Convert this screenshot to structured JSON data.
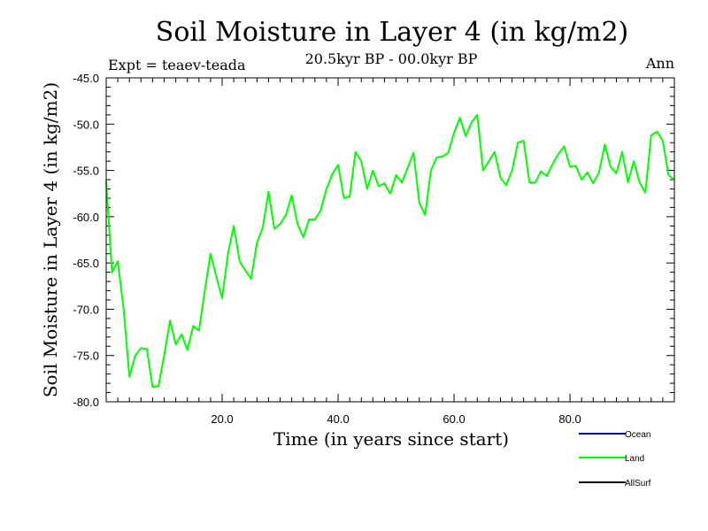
{
  "chart_data": {
    "type": "line",
    "title": "Soil Moisture in Layer 4 (in kg/m2)",
    "subtitle": "20.5kyr BP - 00.0kyr BP",
    "expt_label": "Expt = teaev-teada",
    "season_label": "Ann",
    "xlabel": "Time (in years since start)",
    "ylabel": "Soil Moisture in Layer 4 (in kg/m2)",
    "xlim": [
      0,
      98
    ],
    "ylim": [
      -80,
      -45
    ],
    "x_ticks": [
      20,
      40,
      60,
      80
    ],
    "x_tick_labels": [
      "20.0",
      "40.0",
      "60.0",
      "80.0"
    ],
    "y_ticks": [
      -80,
      -75,
      -70,
      -65,
      -60,
      -55,
      -50,
      -45
    ],
    "y_tick_labels": [
      "-80.0",
      "-75.0",
      "-70.0",
      "-65.0",
      "-60.0",
      "-55.0",
      "-50.0",
      "-45.0"
    ],
    "legend": [
      {
        "name": "Ocean",
        "color": "#0000cc"
      },
      {
        "name": "Land",
        "color": "#00ff00"
      },
      {
        "name": "AllSurf",
        "color": "#000000"
      }
    ],
    "series": [
      {
        "name": "Land",
        "color": "#00ff00",
        "x": [
          0,
          1,
          2,
          3,
          4,
          5,
          6,
          7,
          8,
          9,
          10,
          11,
          12,
          13,
          14,
          15,
          16,
          17,
          18,
          19,
          20,
          21,
          22,
          23,
          24,
          25,
          26,
          27,
          28,
          29,
          30,
          31,
          32,
          33,
          34,
          35,
          36,
          37,
          38,
          39,
          40,
          41,
          42,
          43,
          44,
          45,
          46,
          47,
          48,
          49,
          50,
          51,
          52,
          53,
          54,
          55,
          56,
          57,
          58,
          59,
          60,
          61,
          62,
          63,
          64,
          65,
          66,
          67,
          68,
          69,
          70,
          71,
          72,
          73,
          74,
          75,
          76,
          77,
          78,
          79,
          80,
          81,
          82,
          83,
          84,
          85,
          86,
          87,
          88,
          89,
          90,
          91,
          92,
          93,
          94,
          95,
          96,
          97,
          98
        ],
        "values": [
          -56.2,
          -66.0,
          -64.8,
          -70.0,
          -77.3,
          -75.0,
          -74.2,
          -74.3,
          -78.4,
          -78.3,
          -75.0,
          -71.2,
          -73.8,
          -72.7,
          -74.4,
          -71.8,
          -72.3,
          -68.0,
          -64.0,
          -66.5,
          -68.8,
          -64.0,
          -61.0,
          -64.8,
          -65.8,
          -66.7,
          -62.8,
          -61.2,
          -57.3,
          -61.3,
          -60.8,
          -59.8,
          -57.7,
          -60.8,
          -62.2,
          -60.3,
          -60.3,
          -59.3,
          -57.0,
          -55.4,
          -54.4,
          -58.0,
          -57.8,
          -53.0,
          -54.0,
          -57.0,
          -55.0,
          -56.7,
          -56.4,
          -57.5,
          -55.5,
          -56.3,
          -54.7,
          -53.1,
          -58.5,
          -59.8,
          -55.0,
          -53.6,
          -53.5,
          -53.1,
          -50.9,
          -49.3,
          -51.3,
          -49.8,
          -49.0,
          -55.0,
          -54.0,
          -53.0,
          -55.8,
          -56.6,
          -55.0,
          -52.0,
          -51.8,
          -56.3,
          -56.3,
          -55.1,
          -55.6,
          -54.3,
          -53.2,
          -52.4,
          -54.6,
          -54.5,
          -56.0,
          -55.2,
          -56.4,
          -55.2,
          -52.2,
          -54.6,
          -55.3,
          -53.0,
          -56.3,
          -54.0,
          -56.3,
          -57.4,
          -51.2,
          -50.8,
          -51.8,
          -55.5,
          -56.0
        ]
      }
    ]
  }
}
